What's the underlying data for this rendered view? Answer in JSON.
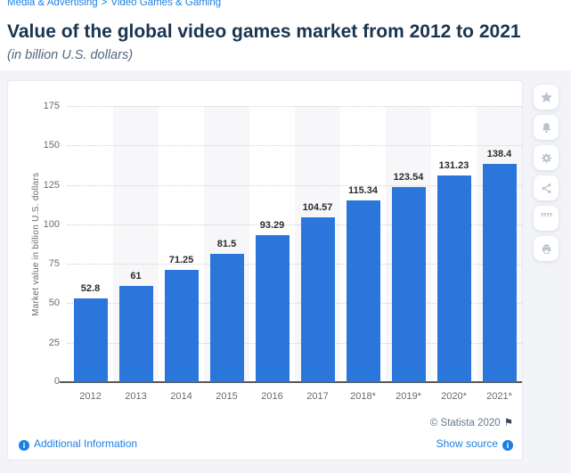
{
  "breadcrumb": {
    "items": [
      "Media & Advertising",
      "Video Games & Gaming"
    ],
    "separator": ">"
  },
  "header": {
    "title": "Value of the global video games market from 2012 to 2021",
    "subtitle": "(in billion U.S. dollars)"
  },
  "chart_data": {
    "type": "bar",
    "title": "Value of the global video games market from 2012 to 2021",
    "subtitle": "(in billion U.S. dollars)",
    "categories": [
      "2012",
      "2013",
      "2014",
      "2015",
      "2016",
      "2017",
      "2018*",
      "2019*",
      "2020*",
      "2021*"
    ],
    "values": [
      52.8,
      61,
      71.25,
      81.5,
      93.29,
      104.57,
      115.34,
      123.54,
      131.23,
      138.4
    ],
    "xlabel": "",
    "ylabel": "Market value in billion U.S. dollars",
    "ylim": [
      0,
      175
    ],
    "ytick_step": 25,
    "grid": true,
    "grid_style": "dotted",
    "bar_color": "#2b76db",
    "stripe_color": "#f7f7f9",
    "legend_position": "none"
  },
  "toolbar": {
    "icons": [
      "star-icon",
      "bell-icon",
      "gear-icon",
      "share-icon",
      "quote-icon",
      "print-icon"
    ]
  },
  "footer": {
    "copyright": "© Statista 2020",
    "flag_glyph": "⚑",
    "show_source": "Show source",
    "additional_info": "Additional Information"
  },
  "colors": {
    "bar": "#2b76db",
    "link_blue": "#1c80e3",
    "title_navy": "#1a3550",
    "subtitle_gray": "#51667e",
    "axis_gray": "#6b6b6b",
    "page_background": "#f2f4f8",
    "icon_gray": "#b9c2cd"
  }
}
